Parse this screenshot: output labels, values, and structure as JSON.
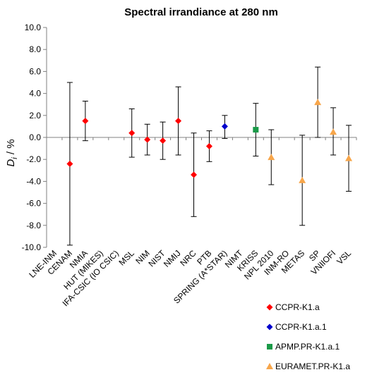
{
  "chart_data": {
    "type": "scatter",
    "title": "Spectral irrandiance at 280 nm",
    "ylabel": "D_i / %",
    "ylim": [
      -10,
      10
    ],
    "ytick_step": 2,
    "ytick_labels": [
      "-10.0",
      "-8.0",
      "-6.0",
      "-4.0",
      "-2.0",
      "0.0",
      "2.0",
      "4.0",
      "6.0",
      "8.0",
      "10.0"
    ],
    "grid": false,
    "legend_position": "bottom-right",
    "categories": [
      "LNE-INM",
      "CENAM",
      "NMIA",
      "HUT (MIKES)",
      "IFA-CSIC (IO CSIC)",
      "MSL",
      "NIM",
      "NIST",
      "NMIJ",
      "NRC",
      "PTB",
      "SPRING (A*STAR)",
      "NIMT",
      "KRISS",
      "NPL 2010",
      "INM-RO",
      "METAS",
      "SP",
      "VNIIOFI",
      "VSL"
    ],
    "series": [
      {
        "name": "CCPR-K1.a",
        "color": "#ff0000",
        "marker": "diamond",
        "points": [
          {
            "category": "CENAM",
            "y": -2.4,
            "low": -9.8,
            "high": 5.0
          },
          {
            "category": "NMIA",
            "y": 1.5,
            "low": -0.3,
            "high": 3.3
          },
          {
            "category": "MSL",
            "y": 0.4,
            "low": -1.8,
            "high": 2.6
          },
          {
            "category": "NIM",
            "y": -0.2,
            "low": -1.6,
            "high": 1.2
          },
          {
            "category": "NIST",
            "y": -0.3,
            "low": -2.0,
            "high": 1.4
          },
          {
            "category": "NMIJ",
            "y": 1.5,
            "low": -1.6,
            "high": 4.6
          },
          {
            "category": "NRC",
            "y": -3.4,
            "low": -7.2,
            "high": 0.4
          },
          {
            "category": "PTB",
            "y": -0.8,
            "low": -2.2,
            "high": 0.6
          }
        ]
      },
      {
        "name": "CCPR-K1.a.1",
        "color": "#0000cc",
        "marker": "diamond",
        "points": [
          {
            "category": "SPRING (A*STAR)",
            "y": 1.0,
            "low": -0.1,
            "high": 2.0
          }
        ]
      },
      {
        "name": "APMP.PR-K1.a.1",
        "color": "#1a9a48",
        "marker": "square",
        "points": [
          {
            "category": "KRISS",
            "y": 0.7,
            "low": -1.7,
            "high": 3.1
          }
        ]
      },
      {
        "name": "EURAMET.PR-K1.a",
        "color": "#f7a64b",
        "marker": "triangle",
        "points": [
          {
            "category": "NPL 2010",
            "y": -1.8,
            "low": -4.3,
            "high": 0.7
          },
          {
            "category": "METAS",
            "y": -3.9,
            "low": -8.0,
            "high": 0.2
          },
          {
            "category": "SP",
            "y": 3.2,
            "low": 0.0,
            "high": 6.4
          },
          {
            "category": "VNIIOFI",
            "y": 0.5,
            "low": -1.6,
            "high": 2.7
          },
          {
            "category": "VSL",
            "y": -1.9,
            "low": -4.9,
            "high": 1.1
          }
        ]
      }
    ]
  }
}
